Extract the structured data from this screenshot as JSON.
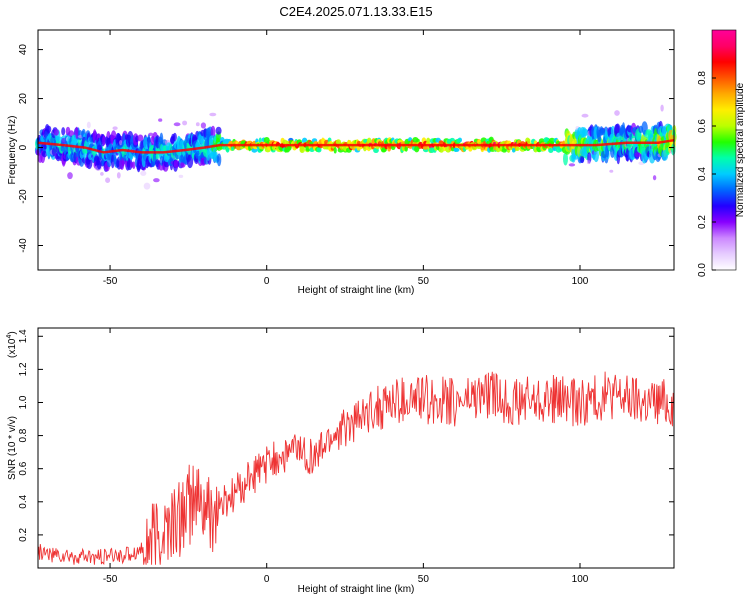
{
  "figure": {
    "title": "C2E4.2025.071.13.33.E15"
  },
  "chart_data": [
    {
      "type": "heatmap",
      "xlabel": "Height of straight line (km)",
      "ylabel": "Frequency (Hz)",
      "xlim": [
        -73,
        130
      ],
      "ylim": [
        -50,
        48
      ],
      "x_ticks": [
        -50,
        0,
        50,
        100
      ],
      "y_ticks": [
        -40,
        -20,
        0,
        20,
        40
      ],
      "grid": false,
      "colorbar": {
        "label": "Normalized spectral amplitude",
        "range": [
          0,
          1
        ],
        "ticks": [
          "0.0",
          "0.2",
          "0.4",
          "0.6",
          "0.8"
        ],
        "tick_values": [
          0.0,
          0.2,
          0.4,
          0.6,
          0.8
        ],
        "colormap": [
          "#ffffff",
          "#e6ccff",
          "#cc88ff",
          "#8800ff",
          "#2200ff",
          "#0066ff",
          "#00ccff",
          "#00ffaa",
          "#22ff00",
          "#bbff00",
          "#ffee00",
          "#ffaa00",
          "#ff5500",
          "#ff0000",
          "#ff0066",
          "#ff0099"
        ]
      },
      "ridge": [
        {
          "x": -73,
          "y": 2,
          "amp": 0.45
        },
        {
          "x": -65,
          "y": 1,
          "amp": 0.5
        },
        {
          "x": -58,
          "y": 0,
          "amp": 0.5
        },
        {
          "x": -52,
          "y": -2,
          "amp": 0.45
        },
        {
          "x": -46,
          "y": -1,
          "amp": 0.45
        },
        {
          "x": -40,
          "y": -2,
          "amp": 0.45
        },
        {
          "x": -33,
          "y": -2,
          "amp": 0.5
        },
        {
          "x": -26,
          "y": -1,
          "amp": 0.5
        },
        {
          "x": -20,
          "y": 0,
          "amp": 0.55
        },
        {
          "x": -15,
          "y": 1,
          "amp": 0.6
        },
        {
          "x": -10,
          "y": 1,
          "amp": 0.85
        },
        {
          "x": 0,
          "y": 1,
          "amp": 0.9
        },
        {
          "x": 20,
          "y": 1,
          "amp": 0.95
        },
        {
          "x": 40,
          "y": 1,
          "amp": 0.95
        },
        {
          "x": 60,
          "y": 1,
          "amp": 0.95
        },
        {
          "x": 80,
          "y": 1,
          "amp": 0.95
        },
        {
          "x": 95,
          "y": 1,
          "amp": 0.8
        },
        {
          "x": 105,
          "y": 1,
          "amp": 0.6
        },
        {
          "x": 115,
          "y": 2,
          "amp": 0.55
        },
        {
          "x": 125,
          "y": 2,
          "amp": 0.7
        },
        {
          "x": 130,
          "y": 3,
          "amp": 0.8
        }
      ]
    },
    {
      "type": "line",
      "xlabel": "Height of straight line (km)",
      "ylabel": "SNR (10 * v/v)",
      "y_multiplier": "(x10",
      "y_multiplier_exp": "4",
      "xlim": [
        -73,
        130
      ],
      "ylim": [
        0,
        1.45
      ],
      "x_ticks": [
        -50,
        0,
        50,
        100
      ],
      "y_ticks": [
        0.2,
        0.4,
        0.6,
        0.8,
        1.0,
        1.2,
        1.4
      ],
      "grid": false,
      "series": [
        {
          "color": "#ee3333",
          "x": [
            -73,
            -65,
            -55,
            -45,
            -38,
            -33,
            -28,
            -25,
            -22,
            -20,
            -18,
            -15,
            -10,
            -5,
            0,
            5,
            10,
            15,
            20,
            25,
            30,
            35,
            40,
            50,
            60,
            70,
            80,
            90,
            100,
            110,
            120,
            130
          ],
          "y": [
            0.1,
            0.07,
            0.06,
            0.08,
            0.12,
            0.2,
            0.3,
            0.38,
            0.4,
            0.35,
            0.3,
            0.36,
            0.45,
            0.55,
            0.62,
            0.68,
            0.72,
            0.65,
            0.78,
            0.85,
            0.9,
            0.97,
            1.0,
            1.02,
            1.0,
            1.05,
            1.0,
            1.02,
            1.0,
            1.05,
            1.0,
            1.0
          ]
        }
      ]
    }
  ]
}
